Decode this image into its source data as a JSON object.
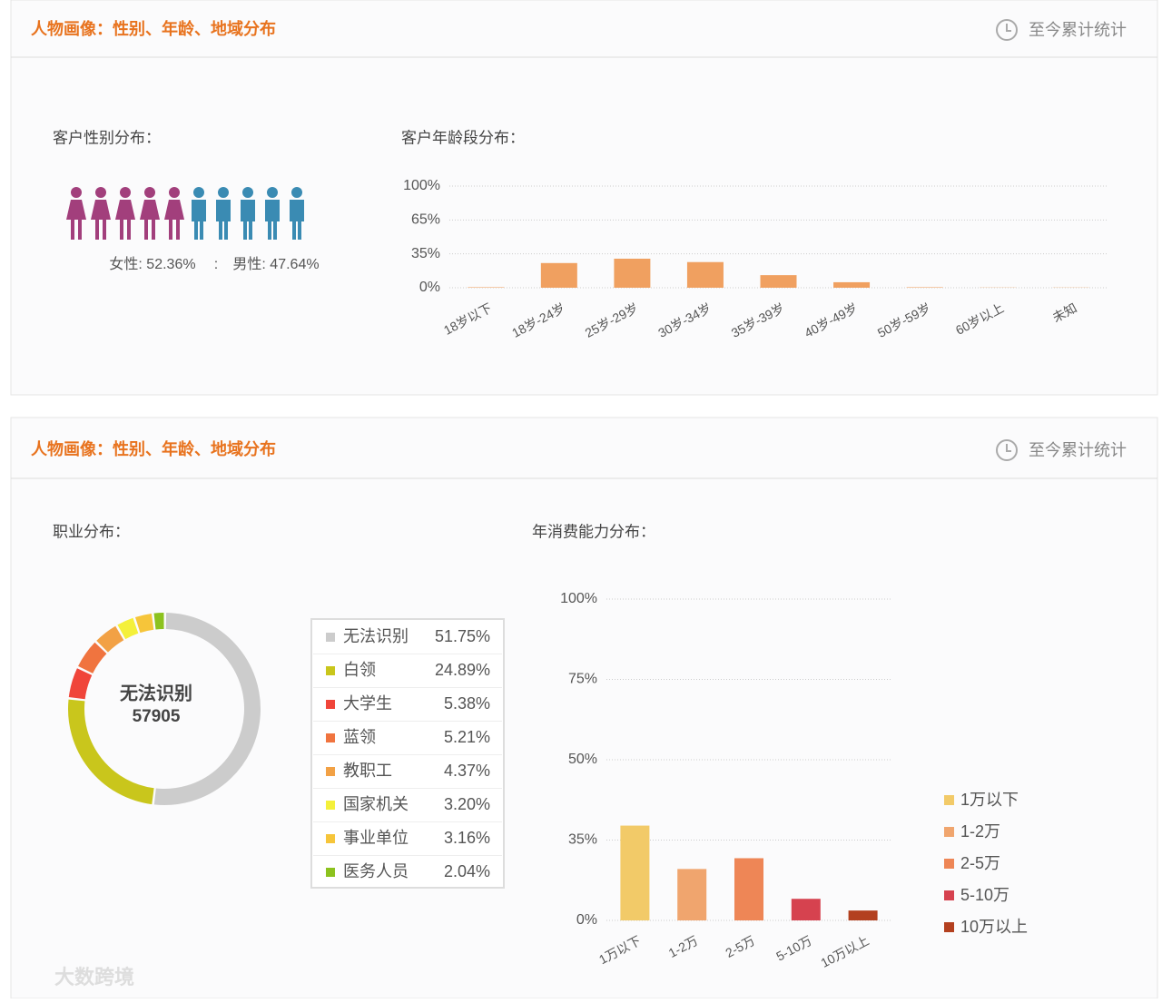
{
  "panels": [
    {
      "title": "人物画像：性别、年龄、地域分布",
      "period": "至今累计统计"
    },
    {
      "title": "人物画像：性别、年龄、地域分布",
      "period": "至今累计统计"
    }
  ],
  "watermark": "大数跨境",
  "chart_data": [
    {
      "type": "pictogram",
      "title": "客户性别分布：",
      "categories": [
        "女性",
        "男性"
      ],
      "values": [
        52.36,
        47.64
      ],
      "value_labels": [
        "女性: 52.36%",
        "男性: 47.64%"
      ],
      "separator": ":",
      "colors": [
        "#a23f7c",
        "#3a8bb3"
      ]
    },
    {
      "type": "bar",
      "title": "客户年龄段分布：",
      "categories": [
        "18岁以下",
        "18岁-24岁",
        "25岁-29岁",
        "30岁-34岁",
        "35岁-39岁",
        "40岁-49岁",
        "50岁-59岁",
        "60岁以上",
        "未知"
      ],
      "values": [
        0.5,
        25.5,
        30,
        26.5,
        13,
        5.7,
        0.5,
        0.2,
        0.2
      ],
      "color": "#f0a060",
      "ylim": [
        0,
        100
      ],
      "yticks": [
        {
          "value": 0,
          "label": "0%"
        },
        {
          "value": 35,
          "label": "35%"
        },
        {
          "value": 65,
          "label": "65%"
        },
        {
          "value": 100,
          "label": "100%"
        }
      ],
      "grid": true
    },
    {
      "type": "donut",
      "title": "职业分布：",
      "center_label": "无法识别",
      "center_value": 57905,
      "categories": [
        "无法识别",
        "白领",
        "大学生",
        "蓝领",
        "教职工",
        "国家机关",
        "事业单位",
        "医务人员"
      ],
      "values": [
        51.75,
        24.89,
        5.38,
        5.21,
        4.37,
        3.2,
        3.16,
        2.04
      ],
      "value_labels": [
        "51.75%",
        "24.89%",
        "5.38%",
        "5.21%",
        "4.37%",
        "3.20%",
        "3.16%",
        "2.04%"
      ],
      "colors": [
        "#cccccc",
        "#c9c61c",
        "#f0453a",
        "#f0743f",
        "#f2a145",
        "#f4f03a",
        "#f6c53a",
        "#8cc21e"
      ]
    },
    {
      "type": "bar",
      "title": "年消费能力分布：",
      "categories": [
        "1万以下",
        "1-2万",
        "2-5万",
        "5-10万",
        "10万以上"
      ],
      "values": [
        37.7,
        22.4,
        27.1,
        9.4,
        4.3
      ],
      "colors": [
        "#f2ca68",
        "#f0a56e",
        "#ee8656",
        "#d6424f",
        "#b3401f"
      ],
      "ylim": [
        0,
        100
      ],
      "yticks": [
        {
          "value": 0,
          "label": "0%"
        },
        {
          "value": 35,
          "label": "35%"
        },
        {
          "value": 50,
          "label": "50%"
        },
        {
          "value": 75,
          "label": "75%"
        },
        {
          "value": 100,
          "label": "100%"
        }
      ],
      "grid": true,
      "legend": "right"
    }
  ]
}
